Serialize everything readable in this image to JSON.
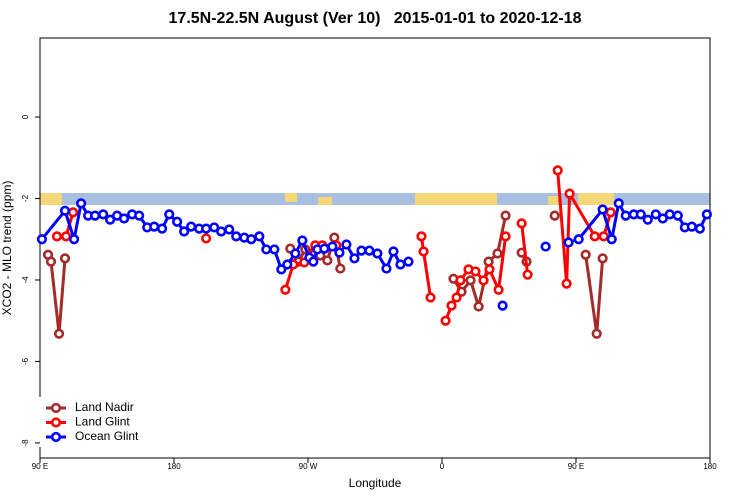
{
  "chart_data": {
    "type": "line",
    "title": "17.5N-22.5N August (Ver 10)   2015-01-01 to 2020-12-18",
    "xlabel": "Longitude",
    "ylabel": "XCO2 - MLO trend (ppm)",
    "xlim": [
      90,
      540
    ],
    "xticks": [
      {
        "value": 90,
        "label": "90 E"
      },
      180,
      {
        "value": 270,
        "label": "90 W"
      },
      {
        "value": 360,
        "label": "0"
      },
      {
        "value": 450,
        "label": "90 E"
      },
      180
    ],
    "ylim": [
      -8.37,
      1.94
    ],
    "yticks": [
      -8,
      -6,
      -4,
      -2,
      0
    ],
    "legend": "lower left",
    "series": [
      {
        "name": "Land Nadir",
        "color": "#a52a2a",
        "x": [
          95.4,
          97.4,
          102.8,
          106.8,
          null,
          258.1,
          263.5,
          268.2,
          273.6,
          278.3,
          283,
          287.7,
          291.7,
          null,
          367.7,
          373.1,
          379.2,
          384.6,
          391.3,
          397.3,
          402.7,
          null,
          413.5,
          416.8,
          null,
          435.7,
          null,
          456.5,
          463.9,
          467.9
        ],
        "values": [
          -3.38,
          -3.55,
          -5.32,
          -3.47,
          null,
          -3.23,
          -3.55,
          -3.25,
          -3.33,
          -3.4,
          -3.52,
          -2.96,
          -3.72,
          null,
          -3.97,
          -4.29,
          -4.01,
          -4.65,
          -3.55,
          -3.35,
          -2.42,
          null,
          -3.33,
          -3.55,
          null,
          -2.42,
          null,
          -3.38,
          -5.32,
          -3.47
        ]
      },
      {
        "name": "Land Glint",
        "color": "#ff0000",
        "x": [
          101.4,
          107.5,
          112.2,
          null,
          201.6,
          null,
          254.8,
          260.1,
          267.5,
          274.9,
          279.6,
          289,
          null,
          346.2,
          347.6,
          352.3,
          null,
          362.4,
          366.4,
          369.8,
          372.4,
          377.8,
          382.5,
          387.9,
          391.9,
          398,
          402.7,
          null,
          413.5,
          417.5,
          null,
          437.7,
          443.7,
          445.7,
          462.6,
          468.6,
          473.3
        ],
        "values": [
          -2.93,
          -2.93,
          -2.34,
          null,
          -2.98,
          null,
          -4.24,
          -3.62,
          -3.57,
          -3.15,
          -3.15,
          -3.15,
          null,
          -2.93,
          -3.3,
          -4.43,
          null,
          -5.0,
          -4.63,
          -4.43,
          -4.01,
          -3.74,
          -3.79,
          -4.01,
          -3.74,
          -4.24,
          -2.93,
          null,
          -2.61,
          -3.87,
          null,
          -1.31,
          -4.09,
          -1.88,
          -2.93,
          -2.93,
          -2.34
        ]
      },
      {
        "name": "Ocean Glint",
        "color": "#0000ff",
        "x": [
          91.3,
          106.8,
          112.9,
          117.6,
          122.3,
          127,
          132.4,
          137.1,
          141.8,
          146.5,
          151.9,
          156.6,
          162,
          166.7,
          172,
          176.8,
          182.1,
          186.8,
          191.5,
          196.9,
          201.6,
          207,
          211.7,
          217.1,
          221.8,
          227.2,
          231.9,
          237.3,
          242,
          247.4,
          252.1,
          256.1,
          261.5,
          266.2,
          270.9,
          273.6,
          276.3,
          281,
          286.4,
          291.1,
          295.8,
          301.2,
          305.9,
          311.2,
          316.6,
          322.7,
          327.4,
          332.1,
          337.5,
          null,
          400.7,
          null,
          429.6,
          null,
          445,
          451.8,
          467.9,
          474,
          478.7,
          483.4,
          488.8,
          493.5,
          498.2,
          503.6,
          508.3,
          513,
          518.4,
          523.1,
          527.8,
          533.2,
          537.9
        ],
        "values": [
          -3.0,
          -2.3,
          -3.0,
          -2.12,
          -2.42,
          -2.42,
          -2.39,
          -2.52,
          -2.42,
          -2.49,
          -2.39,
          -2.42,
          -2.71,
          -2.69,
          -2.74,
          -2.39,
          -2.57,
          -2.81,
          -2.69,
          -2.74,
          -2.74,
          -2.71,
          -2.81,
          -2.76,
          -2.93,
          -2.96,
          -3.0,
          -2.93,
          -3.25,
          -3.25,
          -3.74,
          -3.62,
          -3.35,
          -3.03,
          -3.45,
          -3.55,
          -3.25,
          -3.23,
          -3.18,
          -3.33,
          -3.13,
          -3.47,
          -3.28,
          -3.28,
          -3.35,
          -3.72,
          -3.3,
          -3.62,
          -3.55,
          null,
          -4.63,
          null,
          -3.18,
          null,
          -3.08,
          -3.0,
          -2.27,
          -3.0,
          -2.12,
          -2.42,
          -2.39,
          -2.39,
          -2.52,
          -2.39,
          -2.49,
          -2.39,
          -2.42,
          -2.71,
          -2.69,
          -2.74,
          -2.39
        ]
      }
    ]
  }
}
